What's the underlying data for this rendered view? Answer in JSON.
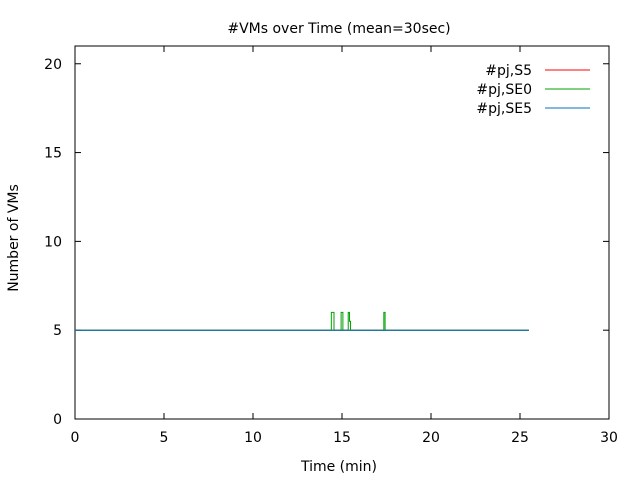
{
  "chart_data": {
    "type": "line",
    "title": "#VMs over Time (mean=30sec)",
    "xlabel": "Time (min)",
    "ylabel": "Number of VMs",
    "xlim": [
      0,
      30
    ],
    "ylim": [
      0,
      21
    ],
    "xticks": [
      0,
      5,
      10,
      15,
      20,
      25,
      30
    ],
    "yticks": [
      0,
      5,
      10,
      15,
      20
    ],
    "grid": false,
    "legend_position": "top-right",
    "series": [
      {
        "name": "#pj,S5",
        "color": "#ff0000",
        "x": [
          0,
          25.5
        ],
        "y": [
          5,
          5
        ]
      },
      {
        "name": "#pj,SE0",
        "color": "#00a000",
        "x": [
          0,
          14.4,
          14.4,
          14.55,
          14.55,
          14.95,
          14.95,
          15.05,
          15.05,
          15.35,
          15.35,
          15.42,
          15.42,
          15.48,
          15.48,
          17.35,
          17.35,
          17.42,
          17.42,
          25.5
        ],
        "y": [
          5,
          5,
          6,
          6,
          5,
          5,
          6,
          6,
          5,
          5,
          6,
          6,
          5.5,
          5.5,
          5,
          5,
          6,
          6,
          5,
          5
        ]
      },
      {
        "name": "#pj,SE5",
        "color": "#0070c0",
        "x": [
          0,
          25.5
        ],
        "y": [
          5,
          5
        ]
      }
    ]
  }
}
